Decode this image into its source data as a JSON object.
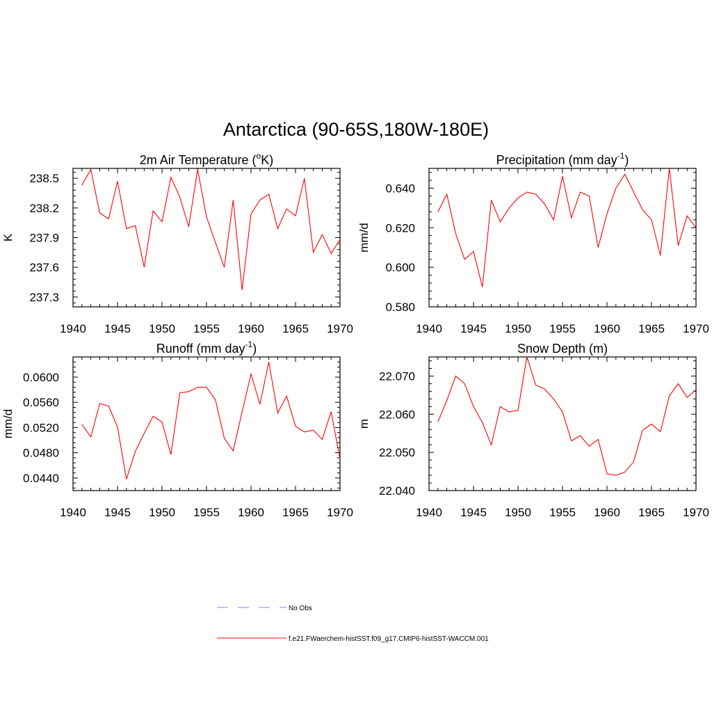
{
  "title": "Antarctica (90-65S,180W-180E)",
  "colors": {
    "model_line": "#ff0000",
    "obs_line": "#8080ff",
    "axes": "#000000"
  },
  "legend": [
    {
      "label": "No Obs",
      "style": "dashed",
      "color": "#8080ff"
    },
    {
      "label": "f.e21.FWaerchem-histSST.f09_g17.CMIP6-histSST-WACCM.001",
      "style": "solid",
      "color": "#ff0000"
    }
  ],
  "chart_data": [
    {
      "type": "line",
      "title": {
        "main": "2m Air Temperature (",
        "sup": "o",
        "rest": "K)"
      },
      "ylabel": "K",
      "xlim": [
        1940,
        1970
      ],
      "ylim": [
        237.2,
        238.6
      ],
      "xticks": [
        1940,
        1945,
        1950,
        1955,
        1960,
        1965,
        1970
      ],
      "yticks": [
        237.3,
        237.6,
        237.9,
        238.2,
        238.5
      ],
      "ytick_labels": [
        "237.3",
        "237.6",
        "237.9",
        "238.2",
        "238.5"
      ],
      "x": [
        1941,
        1942,
        1943,
        1944,
        1945,
        1946,
        1947,
        1948,
        1949,
        1950,
        1951,
        1952,
        1953,
        1954,
        1955,
        1956,
        1957,
        1958,
        1959,
        1960,
        1961,
        1962,
        1963,
        1964,
        1965,
        1966,
        1967,
        1968,
        1969,
        1970
      ],
      "series": [
        {
          "name": "f.e21.FWaerchem-histSST.f09_g17.CMIP6-histSST-WACCM.001",
          "values": [
            238.43,
            238.59,
            238.15,
            238.09,
            238.47,
            237.99,
            238.02,
            237.6,
            238.17,
            238.06,
            238.51,
            238.31,
            238.01,
            238.59,
            238.11,
            237.85,
            237.6,
            238.28,
            237.37,
            238.14,
            238.28,
            238.34,
            237.99,
            238.19,
            238.12,
            238.5,
            237.75,
            237.93,
            237.74,
            237.88
          ]
        }
      ]
    },
    {
      "type": "line",
      "title": {
        "main": "Precipitation (mm day",
        "sup": "-1",
        "rest": ")"
      },
      "ylabel": "mm/d",
      "xlim": [
        1940,
        1970
      ],
      "ylim": [
        0.58,
        0.65
      ],
      "xticks": [
        1940,
        1945,
        1950,
        1955,
        1960,
        1965,
        1970
      ],
      "yticks": [
        0.58,
        0.6,
        0.62,
        0.64
      ],
      "ytick_labels": [
        "0.580",
        "0.600",
        "0.620",
        "0.640"
      ],
      "x": [
        1941,
        1942,
        1943,
        1944,
        1945,
        1946,
        1947,
        1948,
        1949,
        1950,
        1951,
        1952,
        1953,
        1954,
        1955,
        1956,
        1957,
        1958,
        1959,
        1960,
        1961,
        1962,
        1963,
        1964,
        1965,
        1966,
        1967,
        1968,
        1969,
        1970
      ],
      "series": [
        {
          "name": "f.e21.FWaerchem-histSST.f09_g17.CMIP6-histSST-WACCM.001",
          "values": [
            0.628,
            0.637,
            0.617,
            0.604,
            0.608,
            0.59,
            0.634,
            0.623,
            0.63,
            0.635,
            0.638,
            0.637,
            0.632,
            0.624,
            0.646,
            0.625,
            0.638,
            0.636,
            0.61,
            0.627,
            0.64,
            0.647,
            0.638,
            0.629,
            0.624,
            0.606,
            0.65,
            0.611,
            0.626,
            0.62
          ]
        }
      ]
    },
    {
      "type": "line",
      "title": {
        "main": "Runoff (mm day",
        "sup": "-1",
        "rest": ")"
      },
      "ylabel": "mm/d",
      "xlim": [
        1940,
        1970
      ],
      "ylim": [
        0.042,
        0.0632
      ],
      "xticks": [
        1940,
        1945,
        1950,
        1955,
        1960,
        1965,
        1970
      ],
      "yticks": [
        0.044,
        0.048,
        0.052,
        0.056,
        0.06
      ],
      "ytick_labels": [
        "0.0440",
        "0.0480",
        "0.0520",
        "0.0560",
        "0.0600"
      ],
      "x": [
        1941,
        1942,
        1943,
        1944,
        1945,
        1946,
        1947,
        1948,
        1949,
        1950,
        1951,
        1952,
        1953,
        1954,
        1955,
        1956,
        1957,
        1958,
        1959,
        1960,
        1961,
        1962,
        1963,
        1964,
        1965,
        1966,
        1967,
        1968,
        1969,
        1970
      ],
      "series": [
        {
          "name": "f.e21.FWaerchem-histSST.f09_g17.CMIP6-histSST-WACCM.001",
          "values": [
            0.0525,
            0.0505,
            0.0558,
            0.0554,
            0.0521,
            0.0438,
            0.0482,
            0.0511,
            0.0538,
            0.0529,
            0.0477,
            0.0575,
            0.0577,
            0.0584,
            0.0584,
            0.0564,
            0.0503,
            0.0483,
            0.0545,
            0.0605,
            0.0557,
            0.0624,
            0.0543,
            0.057,
            0.0522,
            0.0513,
            0.0516,
            0.0501,
            0.0545,
            0.047
          ]
        }
      ]
    },
    {
      "type": "line",
      "title": {
        "main": "Snow Depth (m)",
        "sup": "",
        "rest": ""
      },
      "ylabel": "m",
      "xlim": [
        1940,
        1970
      ],
      "ylim": [
        22.04,
        22.075
      ],
      "xticks": [
        1940,
        1945,
        1950,
        1955,
        1960,
        1965,
        1970
      ],
      "yticks": [
        22.04,
        22.05,
        22.06,
        22.07
      ],
      "ytick_labels": [
        "22.040",
        "22.050",
        "22.060",
        "22.070"
      ],
      "x": [
        1941,
        1942,
        1943,
        1944,
        1945,
        1946,
        1947,
        1948,
        1949,
        1950,
        1951,
        1952,
        1953,
        1954,
        1955,
        1956,
        1957,
        1958,
        1959,
        1960,
        1961,
        1962,
        1963,
        1964,
        1965,
        1966,
        1967,
        1968,
        1969,
        1970
      ],
      "series": [
        {
          "name": "f.e21.FWaerchem-histSST.f09_g17.CMIP6-histSST-WACCM.001",
          "values": [
            22.058,
            22.0636,
            22.07,
            22.068,
            22.062,
            22.0578,
            22.052,
            22.062,
            22.0606,
            22.061,
            22.075,
            22.0676,
            22.0666,
            22.064,
            22.0606,
            22.053,
            22.0544,
            22.0516,
            22.0534,
            22.0444,
            22.044,
            22.0448,
            22.0476,
            22.0558,
            22.0574,
            22.0554,
            22.0648,
            22.068,
            22.0644,
            22.0664
          ]
        }
      ]
    }
  ]
}
